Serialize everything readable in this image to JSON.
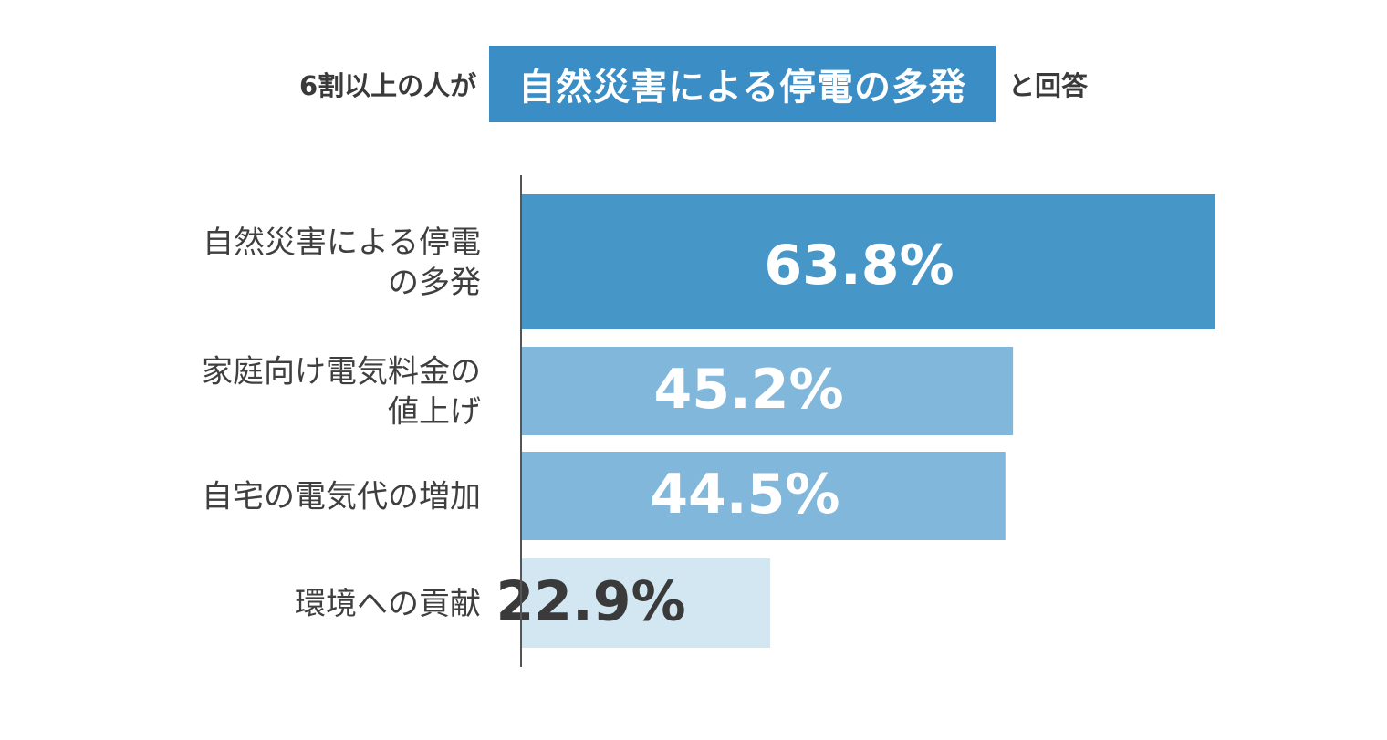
{
  "headline": {
    "prefix": "6割以上の人が",
    "highlight": "自然災害による停電の多発",
    "suffix": "と回答"
  },
  "colors": {
    "highlight_bg": "#3a8dc5",
    "bar_colors": [
      "#4697c8",
      "#80b7da",
      "#80b7da",
      "#d3e7f2"
    ],
    "value_text_colors": [
      "#ffffff",
      "#ffffff",
      "#ffffff",
      "#3a3a3a"
    ],
    "axis": "#555555",
    "label_text": "#3f3f3f"
  },
  "chart_data": {
    "type": "bar",
    "orientation": "horizontal",
    "categories": [
      [
        "自然災害による停電",
        "の多発"
      ],
      [
        "家庭向け電気料金の",
        "値上げ"
      ],
      [
        "自宅の電気代の増加"
      ],
      [
        "環境への貢献"
      ]
    ],
    "values": [
      63.8,
      45.2,
      44.5,
      22.9
    ],
    "value_labels": [
      "63.8%",
      "45.2%",
      "44.5%",
      "22.9%"
    ],
    "xlim": [
      0,
      100
    ],
    "grid": false
  }
}
